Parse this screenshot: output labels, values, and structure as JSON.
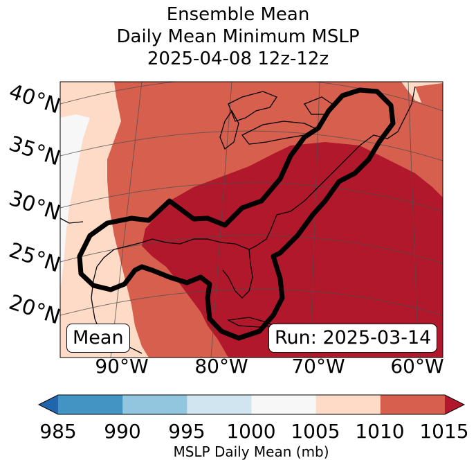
{
  "title": {
    "line1": "Ensemble Mean",
    "line2": "Daily Mean Minimum MSLP",
    "line3": "2025-04-08 12z-12z"
  },
  "map": {
    "lat_labels": [
      "40°N",
      "35°N",
      "30°N",
      "25°N",
      "20°N"
    ],
    "lon_labels": [
      "90°W",
      "80°W",
      "70°W",
      "60°W"
    ],
    "mean_box": "Mean",
    "run_box": "Run: 2025-03-14"
  },
  "colorbar": {
    "ticks": [
      "985",
      "990",
      "995",
      "1000",
      "1005",
      "1010",
      "1015"
    ],
    "label": "MSLP Daily Mean (mb)",
    "colors": [
      "#2166ac",
      "#4393c3",
      "#92c5de",
      "#d1e5f0",
      "#f7f7f7",
      "#fddbc7",
      "#d6604d",
      "#b2182b"
    ]
  }
}
